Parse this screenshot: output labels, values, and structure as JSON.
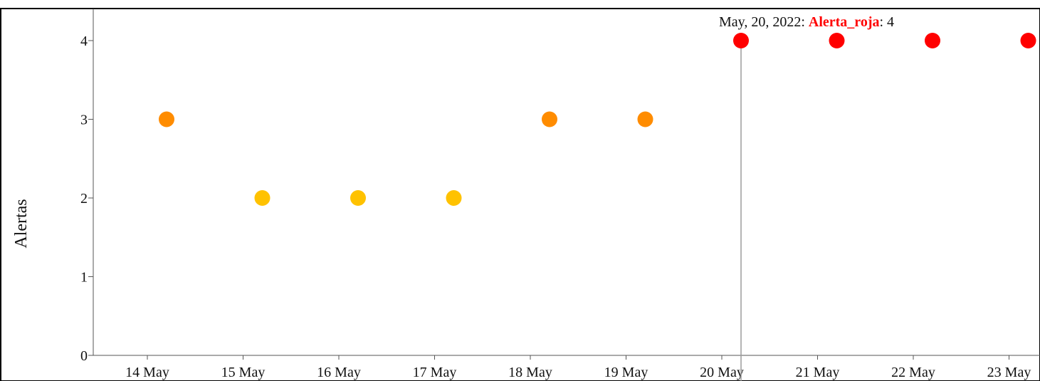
{
  "chart_data": {
    "type": "scatter",
    "title": "",
    "xlabel": "",
    "ylabel": "Alertas",
    "ylim": [
      0,
      4
    ],
    "yticks": [
      0,
      1,
      2,
      3,
      4
    ],
    "x": [
      "2022-05-14",
      "2022-05-15",
      "2022-05-16",
      "2022-05-17",
      "2022-05-18",
      "2022-05-19",
      "2022-05-20",
      "2022-05-21",
      "2022-05-22",
      "2022-05-23"
    ],
    "xtick_labels": [
      "14 May",
      "15 May",
      "16 May",
      "17 May",
      "18 May",
      "19 May",
      "20 May",
      "21 May",
      "22 May",
      "23 May"
    ],
    "values": [
      3,
      2,
      2,
      2,
      3,
      3,
      4,
      4,
      4,
      4
    ],
    "point_colors": [
      "#ff8c00",
      "#ffc200",
      "#ffc200",
      "#ffc200",
      "#ff8c00",
      "#ff8c00",
      "#ff0000",
      "#ff0000",
      "#ff0000",
      "#ff0000"
    ],
    "grid": false,
    "legend": "none",
    "tooltip": {
      "date": "May, 20, 2022",
      "series": "Alerta_roja",
      "value": "4",
      "point_index": 6,
      "series_color": "#ff0000"
    }
  }
}
